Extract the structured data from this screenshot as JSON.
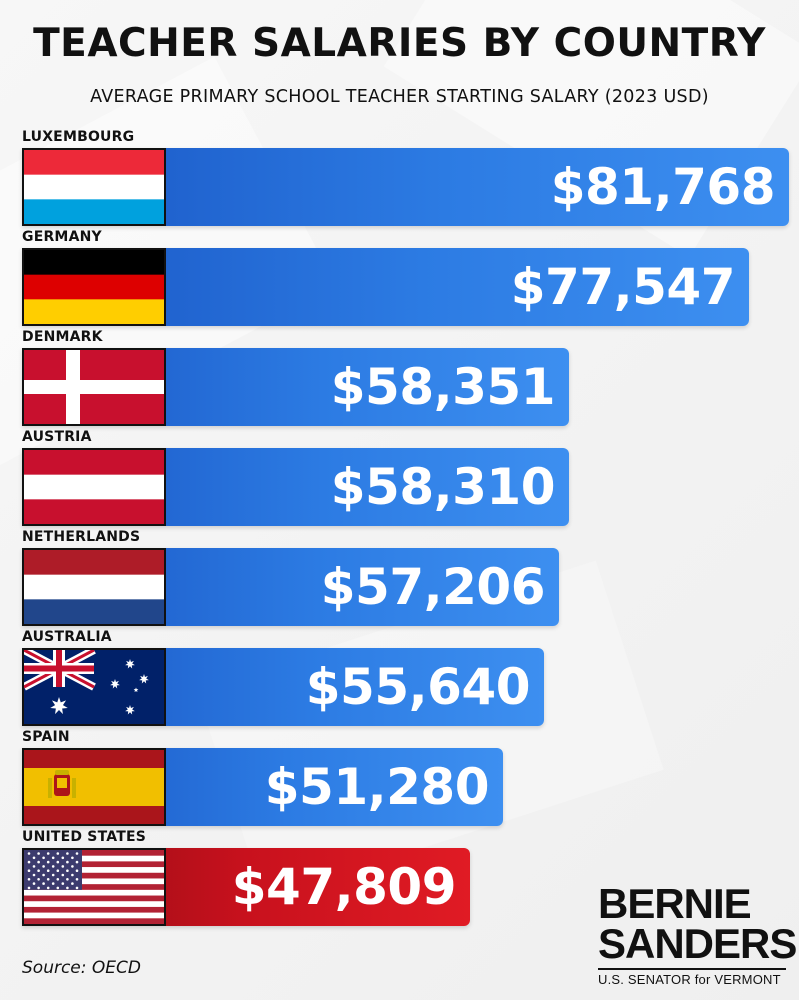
{
  "chart_data": {
    "type": "bar",
    "orientation": "horizontal",
    "title": "TEACHER SALARIES BY COUNTRY",
    "subtitle": "AVERAGE PRIMARY SCHOOL TEACHER STARTING SALARY (2023 USD)",
    "categories": [
      "LUXEMBOURG",
      "GERMANY",
      "DENMARK",
      "AUSTRIA",
      "NETHERLANDS",
      "AUSTRALIA",
      "SPAIN",
      "UNITED STATES"
    ],
    "values": [
      81768,
      77547,
      58351,
      58310,
      57206,
      55640,
      51280,
      47809
    ],
    "value_labels": [
      "$81,768",
      "$77,547",
      "$58,351",
      "$58,310",
      "$57,206",
      "$55,640",
      "$51,280",
      "$47,809"
    ],
    "flags": [
      "luxembourg-flag-icon",
      "germany-flag-icon",
      "denmark-flag-icon",
      "austria-flag-icon",
      "netherlands-flag-icon",
      "australia-flag-icon",
      "spain-flag-icon",
      "united-states-flag-icon"
    ],
    "bar_colors": [
      "#2a74dd",
      "#2a74dd",
      "#2a74dd",
      "#2a74dd",
      "#2a74dd",
      "#2a74dd",
      "#2a74dd",
      "#c8111d"
    ],
    "xlim": [
      0,
      81768
    ],
    "grid": false,
    "legend": "none"
  },
  "source": "Source: OECD",
  "logo": {
    "line1": "BERNIE",
    "line2": "SANDERS",
    "tagline": "U.S. SENATOR for VERMONT"
  }
}
